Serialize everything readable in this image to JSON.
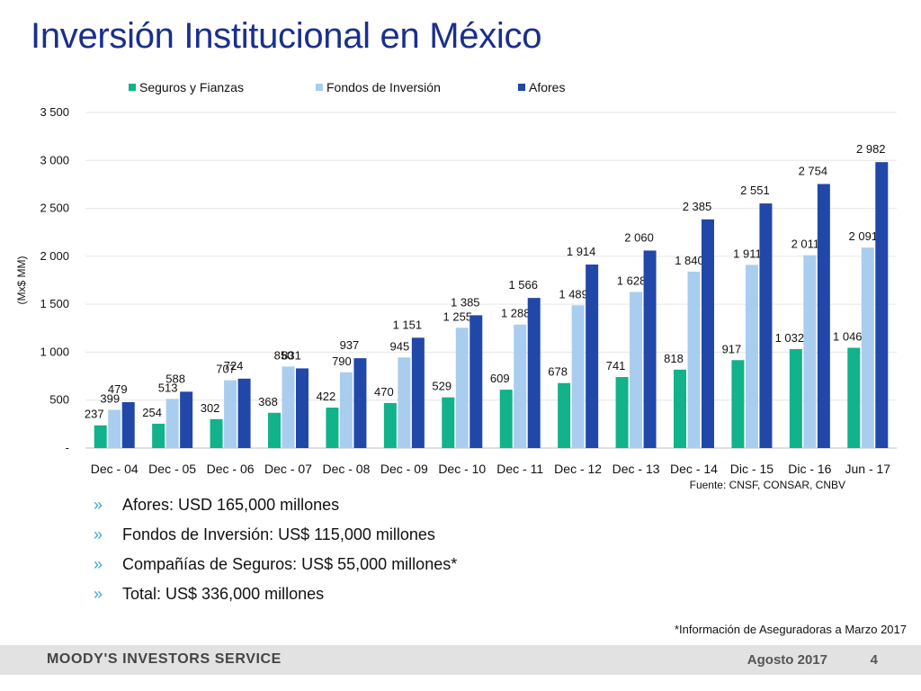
{
  "page": {
    "title": "Inversión Institucional en México",
    "source": "Fuente: CNSF, CONSAR, CNBV",
    "bullets": [
      "Afores: USD 165,000 millones",
      "Fondos de Inversión: US$ 115,000 millones",
      "Compañías de Seguros: US$ 55,000 millones*",
      "Total: US$ 336,000 millones"
    ],
    "bullet_symbol": "»",
    "footnote": "*Información de Aseguradoras a Marzo 2017",
    "footer": {
      "brand": "MOODY'S INVESTORS SERVICE",
      "date": "Agosto 2017",
      "page_number": "4"
    }
  },
  "chart_data": {
    "type": "bar",
    "title": "",
    "ylabel": "(Mx$ MM)",
    "xlabel": "",
    "ylim": [
      0,
      3500
    ],
    "yticks": [
      0,
      500,
      1000,
      1500,
      2000,
      2500,
      3000,
      3500
    ],
    "ytick_labels": [
      "-",
      "500",
      "1 000",
      "1 500",
      "2 000",
      "2 500",
      "3 000",
      "3 500"
    ],
    "grid": true,
    "legend_position": "top",
    "categories": [
      "Dec - 04",
      "Dec - 05",
      "Dec - 06",
      "Dec - 07",
      "Dec - 08",
      "Dec - 09",
      "Dec - 10",
      "Dec - 11",
      "Dec - 12",
      "Dec - 13",
      "Dec - 14",
      "Dic -  15",
      "Dic -  16",
      "Jun - 17"
    ],
    "series": [
      {
        "name": "Seguros y Fianzas",
        "color": "#12b28a",
        "values": [
          237,
          254,
          302,
          368,
          422,
          470,
          529,
          609,
          678,
          741,
          818,
          917,
          1032,
          1046
        ],
        "labels": [
          "237",
          "254",
          "302",
          "368",
          "422",
          "470",
          "529",
          "609",
          "678",
          "741",
          "818",
          "917",
          "1 032",
          "1 046"
        ]
      },
      {
        "name": "Fondos de Inversión",
        "color": "#a9cdee",
        "values": [
          399,
          513,
          707,
          850,
          790,
          945,
          1255,
          1288,
          1489,
          1628,
          1840,
          1911,
          2011,
          2091
        ],
        "labels": [
          "399",
          "513",
          "707",
          "850",
          "790",
          "945",
          "1 255",
          "1 288",
          "1 489",
          "1 628",
          "1 840",
          "1 911",
          "2 011",
          "2 091"
        ]
      },
      {
        "name": "Afores",
        "color": "#2148a8",
        "values": [
          479,
          588,
          724,
          831,
          937,
          1151,
          1385,
          1566,
          1914,
          2060,
          2385,
          2551,
          2754,
          2982
        ],
        "labels": [
          "479",
          "588",
          "724",
          "831",
          "937",
          "1 151",
          "1 385",
          "1 566",
          "1 914",
          "2 060",
          "2 385",
          "2 551",
          "2 754",
          "2 982"
        ]
      }
    ]
  }
}
